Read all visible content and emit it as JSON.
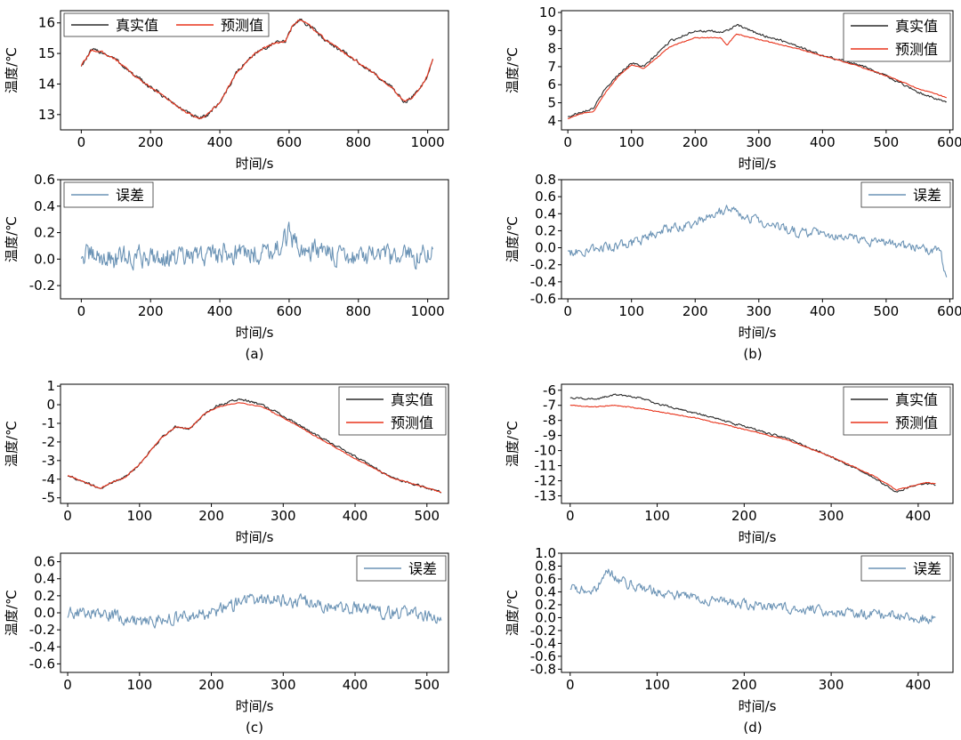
{
  "chart_data": [
    {
      "panel": "a",
      "caption": "(a)",
      "charts": [
        {
          "type": "line",
          "xlabel": "时间/s",
          "ylabel": "温度/℃",
          "xlim": [
            -60,
            1060
          ],
          "ylim": [
            12.5,
            16.4
          ],
          "xticks": [
            0,
            200,
            400,
            600,
            800,
            1000
          ],
          "yticks": [
            13,
            14,
            15,
            16
          ],
          "legend": "top-left",
          "series": [
            {
              "name": "真实值",
              "color": "#2b2b2b",
              "x": [
                0,
                30,
                60,
                100,
                150,
                200,
                250,
                300,
                340,
                360,
                400,
                450,
                500,
                550,
                590,
                610,
                630,
                660,
                700,
                750,
                800,
                850,
                900,
                930,
                950,
                980,
                1000,
                1015
              ],
              "y": [
                14.6,
                15.1,
                15.05,
                14.8,
                14.3,
                13.9,
                13.5,
                13.1,
                12.85,
                12.95,
                13.4,
                14.4,
                15.0,
                15.3,
                15.4,
                15.9,
                16.1,
                15.9,
                15.5,
                15.1,
                14.7,
                14.3,
                13.85,
                13.45,
                13.5,
                13.9,
                14.3,
                14.8
              ],
              "noise": 0.1
            },
            {
              "name": "预测值",
              "color": "#e8341c",
              "x": [
                0,
                30,
                60,
                100,
                150,
                200,
                250,
                300,
                340,
                360,
                400,
                450,
                500,
                550,
                590,
                610,
                630,
                660,
                700,
                750,
                800,
                850,
                900,
                930,
                950,
                980,
                1000,
                1015
              ],
              "y": [
                14.6,
                15.1,
                15.05,
                14.8,
                14.3,
                13.9,
                13.5,
                13.1,
                12.85,
                12.95,
                13.4,
                14.4,
                15.0,
                15.3,
                15.4,
                15.9,
                16.1,
                15.9,
                15.5,
                15.1,
                14.7,
                14.3,
                13.85,
                13.45,
                13.5,
                13.9,
                14.3,
                14.8
              ],
              "noise": 0.05
            }
          ]
        },
        {
          "type": "line",
          "xlabel": "时间/s",
          "ylabel": "温度/℃",
          "xlim": [
            -60,
            1060
          ],
          "ylim": [
            -0.3,
            0.6
          ],
          "xticks": [
            0,
            200,
            400,
            600,
            800,
            1000
          ],
          "yticks": [
            -0.2,
            0,
            0.2,
            0.4,
            0.6
          ],
          "ytick_labels": [
            "-0.2",
            "0.0",
            "0.2",
            "0.4",
            "0.6"
          ],
          "legend": "top-left",
          "series": [
            {
              "name": "误差",
              "color": "#6b93b5",
              "x": [
                0,
                100,
                200,
                300,
                400,
                500,
                580,
                600,
                620,
                700,
                800,
                900,
                1000,
                1015
              ],
              "y": [
                0.03,
                0.0,
                0.03,
                0.0,
                0.05,
                0.05,
                0.1,
                0.2,
                0.1,
                0.05,
                0.02,
                0.0,
                0.05,
                0.05
              ],
              "noise": 0.13
            }
          ]
        }
      ]
    },
    {
      "panel": "b",
      "caption": "(b)",
      "charts": [
        {
          "type": "line",
          "xlabel": "时间/s",
          "ylabel": "温度/℃",
          "xlim": [
            -10,
            605
          ],
          "ylim": [
            3.5,
            10.1
          ],
          "xticks": [
            0,
            100,
            200,
            300,
            400,
            500,
            600
          ],
          "yticks": [
            4,
            5,
            6,
            7,
            8,
            9,
            10
          ],
          "legend": "top-right",
          "series": [
            {
              "name": "真实值",
              "color": "#2b2b2b",
              "x": [
                0,
                20,
                40,
                60,
                80,
                100,
                120,
                140,
                160,
                200,
                240,
                250,
                265,
                300,
                350,
                400,
                450,
                500,
                550,
                595
              ],
              "y": [
                4.2,
                4.5,
                4.7,
                5.8,
                6.6,
                7.2,
                7.0,
                7.7,
                8.4,
                9.0,
                8.9,
                9.0,
                9.3,
                8.8,
                8.3,
                7.6,
                7.2,
                6.5,
                5.6,
                5.0
              ],
              "noise": 0.1
            },
            {
              "name": "预测值",
              "color": "#e8341c",
              "x": [
                0,
                20,
                40,
                60,
                80,
                100,
                120,
                140,
                160,
                200,
                240,
                250,
                265,
                300,
                350,
                400,
                450,
                500,
                550,
                595
              ],
              "y": [
                4.1,
                4.4,
                4.5,
                5.6,
                6.5,
                7.1,
                6.9,
                7.5,
                8.1,
                8.6,
                8.6,
                8.2,
                8.8,
                8.5,
                8.1,
                7.6,
                7.1,
                6.5,
                5.8,
                5.3
              ],
              "noise": 0.04
            }
          ]
        },
        {
          "type": "line",
          "xlabel": "时间/s",
          "ylabel": "温度/℃",
          "xlim": [
            -10,
            605
          ],
          "ylim": [
            -0.6,
            0.8
          ],
          "xticks": [
            0,
            100,
            200,
            300,
            400,
            500,
            600
          ],
          "yticks": [
            -0.6,
            -0.4,
            -0.2,
            0,
            0.2,
            0.4,
            0.6,
            0.8
          ],
          "ytick_labels": [
            "-0.6",
            "-0.4",
            "-0.2",
            "0.0",
            "0.2",
            "0.4",
            "0.6",
            "0.8"
          ],
          "legend": "top-right",
          "series": [
            {
              "name": "误差",
              "color": "#6b93b5",
              "x": [
                0,
                50,
                100,
                150,
                200,
                250,
                270,
                300,
                350,
                400,
                450,
                500,
                550,
                585,
                595
              ],
              "y": [
                -0.05,
                0.0,
                0.05,
                0.2,
                0.3,
                0.45,
                0.4,
                0.3,
                0.2,
                0.15,
                0.1,
                0.05,
                0.0,
                -0.05,
                -0.4
              ],
              "noise": 0.09
            }
          ]
        }
      ]
    },
    {
      "panel": "c",
      "caption": "(c)",
      "charts": [
        {
          "type": "line",
          "xlabel": "时间/s",
          "ylabel": "温度/℃",
          "xlim": [
            -10,
            530
          ],
          "ylim": [
            -5.3,
            1.1
          ],
          "xticks": [
            0,
            100,
            200,
            300,
            400,
            500
          ],
          "yticks": [
            -5,
            -4,
            -3,
            -2,
            -1,
            0,
            1
          ],
          "legend": "top-right",
          "series": [
            {
              "name": "真实值",
              "color": "#2b2b2b",
              "x": [
                0,
                20,
                45,
                60,
                80,
                100,
                130,
                150,
                170,
                190,
                210,
                240,
                270,
                300,
                350,
                400,
                450,
                520
              ],
              "y": [
                -3.8,
                -4.1,
                -4.5,
                -4.2,
                -3.9,
                -3.2,
                -1.8,
                -1.2,
                -1.3,
                -0.5,
                0.0,
                0.3,
                0.0,
                -0.6,
                -1.7,
                -2.8,
                -3.9,
                -4.7
              ],
              "noise": 0.1
            },
            {
              "name": "预测值",
              "color": "#e8341c",
              "x": [
                0,
                20,
                45,
                60,
                80,
                100,
                130,
                150,
                170,
                190,
                210,
                240,
                270,
                300,
                350,
                400,
                450,
                520
              ],
              "y": [
                -3.8,
                -4.1,
                -4.5,
                -4.2,
                -3.9,
                -3.2,
                -1.8,
                -1.2,
                -1.3,
                -0.5,
                -0.1,
                0.1,
                -0.1,
                -0.7,
                -1.8,
                -2.9,
                -3.9,
                -4.7
              ],
              "noise": 0.04
            }
          ]
        },
        {
          "type": "line",
          "xlabel": "时间/s",
          "ylabel": "温度/℃",
          "xlim": [
            -10,
            530
          ],
          "ylim": [
            -0.7,
            0.7
          ],
          "xticks": [
            0,
            100,
            200,
            300,
            400,
            500
          ],
          "yticks": [
            -0.6,
            -0.4,
            -0.2,
            0,
            0.2,
            0.4,
            0.6
          ],
          "ytick_labels": [
            "-0.6",
            "-0.4",
            "-0.2",
            "0.0",
            "0.2",
            "0.4",
            "0.6"
          ],
          "legend": "top-right",
          "series": [
            {
              "name": "误差",
              "color": "#6b93b5",
              "x": [
                0,
                50,
                100,
                150,
                200,
                250,
                300,
                350,
                400,
                450,
                520
              ],
              "y": [
                0.0,
                0.0,
                -0.1,
                -0.05,
                0.0,
                0.15,
                0.15,
                0.1,
                0.05,
                0.0,
                -0.05
              ],
              "noise": 0.12
            }
          ]
        }
      ]
    },
    {
      "panel": "d",
      "caption": "(d)",
      "charts": [
        {
          "type": "line",
          "xlabel": "时间/s",
          "ylabel": "温度/℃",
          "xlim": [
            -10,
            440
          ],
          "ylim": [
            -13.5,
            -5.6
          ],
          "xticks": [
            0,
            100,
            200,
            300,
            400
          ],
          "yticks": [
            -13,
            -12,
            -11,
            -10,
            -9,
            -8,
            -7,
            -6
          ],
          "legend": "top-right",
          "series": [
            {
              "name": "真实值",
              "color": "#2b2b2b",
              "x": [
                0,
                30,
                50,
                80,
                100,
                150,
                200,
                250,
                300,
                350,
                375,
                390,
                410,
                420
              ],
              "y": [
                -6.5,
                -6.6,
                -6.3,
                -6.5,
                -6.9,
                -7.6,
                -8.4,
                -9.2,
                -10.4,
                -11.8,
                -12.8,
                -12.4,
                -12.2,
                -12.3
              ],
              "noise": 0.1
            },
            {
              "name": "预测值",
              "color": "#e8341c",
              "x": [
                0,
                30,
                50,
                80,
                100,
                150,
                200,
                250,
                300,
                350,
                375,
                390,
                410,
                420
              ],
              "y": [
                -7.0,
                -7.1,
                -7.0,
                -7.2,
                -7.4,
                -7.9,
                -8.6,
                -9.3,
                -10.4,
                -11.7,
                -12.6,
                -12.4,
                -12.1,
                -12.2
              ],
              "noise": 0.05
            }
          ]
        },
        {
          "type": "line",
          "xlabel": "时间/s",
          "ylabel": "温度/℃",
          "xlim": [
            -10,
            440
          ],
          "ylim": [
            -0.85,
            1.0
          ],
          "xticks": [
            0,
            100,
            200,
            300,
            400
          ],
          "yticks": [
            -0.8,
            -0.6,
            -0.4,
            -0.2,
            0,
            0.2,
            0.4,
            0.6,
            0.8,
            1.0
          ],
          "ytick_labels": [
            "-0.8",
            "-0.6",
            "-0.4",
            "-0.2",
            "0.0",
            "0.2",
            "0.4",
            "0.6",
            "0.8",
            "1.0"
          ],
          "legend": "top-right",
          "series": [
            {
              "name": "误差",
              "color": "#6b93b5",
              "x": [
                0,
                30,
                40,
                60,
                100,
                150,
                200,
                250,
                300,
                350,
                400,
                420
              ],
              "y": [
                0.45,
                0.4,
                0.75,
                0.55,
                0.4,
                0.3,
                0.2,
                0.15,
                0.1,
                0.05,
                0.0,
                0.0
              ],
              "noise": 0.12
            }
          ]
        }
      ]
    }
  ]
}
